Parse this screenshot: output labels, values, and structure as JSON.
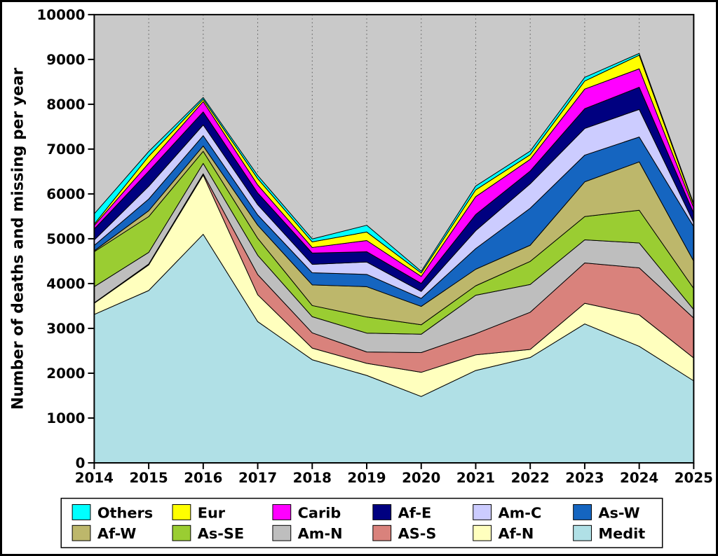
{
  "chart_data": {
    "type": "area",
    "stacked": true,
    "title": "",
    "xlabel": "",
    "ylabel": "Number of deaths and missing per year",
    "ylim": [
      0,
      10000
    ],
    "ytick_step": 1000,
    "grid": "vertical-dotted",
    "legend_position": "bottom",
    "plot_background": "#C9C9C9",
    "x": [
      2014,
      2015,
      2016,
      2017,
      2018,
      2019,
      2020,
      2021,
      2022,
      2023,
      2024,
      2025
    ],
    "series": [
      {
        "name": "Medit",
        "color": "#B0E0E6",
        "values": [
          3310,
          3845,
          5100,
          3150,
          2300,
          1950,
          1480,
          2060,
          2350,
          3100,
          2600,
          1830
        ]
      },
      {
        "name": "Af-N",
        "color": "#FFFFBE",
        "values": [
          250,
          570,
          1320,
          600,
          260,
          270,
          540,
          350,
          180,
          460,
          700,
          510
        ]
      },
      {
        "name": "AS-S",
        "color": "#D9827C",
        "values": [
          10,
          20,
          30,
          450,
          340,
          255,
          440,
          470,
          830,
          900,
          1050,
          890
        ]
      },
      {
        "name": "Am-N",
        "color": "#BEBEBE",
        "values": [
          360,
          260,
          230,
          430,
          360,
          420,
          410,
          860,
          620,
          515,
          555,
          190
        ]
      },
      {
        "name": "As-SE",
        "color": "#9ACD32",
        "values": [
          780,
          800,
          270,
          380,
          250,
          360,
          210,
          210,
          515,
          520,
          730,
          470
        ]
      },
      {
        "name": "Af-W",
        "color": "#BDB76B",
        "values": [
          20,
          130,
          120,
          290,
          460,
          675,
          410,
          370,
          360,
          775,
          1080,
          610
        ]
      },
      {
        "name": "As-W",
        "color": "#1565C0",
        "values": [
          120,
          260,
          230,
          230,
          270,
          275,
          180,
          460,
          825,
          595,
          555,
          770
        ]
      },
      {
        "name": "Am-C",
        "color": "#CCCCFF",
        "values": [
          120,
          285,
          240,
          230,
          190,
          275,
          155,
          400,
          545,
          595,
          615,
          90
        ]
      },
      {
        "name": "Af-E",
        "color": "#000080",
        "values": [
          245,
          335,
          290,
          260,
          250,
          230,
          180,
          360,
          285,
          440,
          495,
          210
        ]
      },
      {
        "name": "Carib",
        "color": "#FF00FF",
        "values": [
          80,
          180,
          230,
          180,
          125,
          250,
          155,
          400,
          260,
          440,
          410,
          120
        ]
      },
      {
        "name": "Eur",
        "color": "#FFFF00",
        "values": [
          30,
          155,
          50,
          140,
          125,
          190,
          75,
          150,
          105,
          180,
          305,
          60
        ]
      },
      {
        "name": "Others",
        "color": "#00FFFF",
        "values": [
          230,
          105,
          40,
          70,
          65,
          150,
          40,
          85,
          80,
          80,
          40,
          30
        ]
      }
    ],
    "legend_display_order": [
      "Others",
      "Eur",
      "Carib",
      "Af-E",
      "Am-C",
      "As-W",
      "Af-W",
      "As-SE",
      "Am-N",
      "AS-S",
      "Af-N",
      "Medit"
    ]
  }
}
